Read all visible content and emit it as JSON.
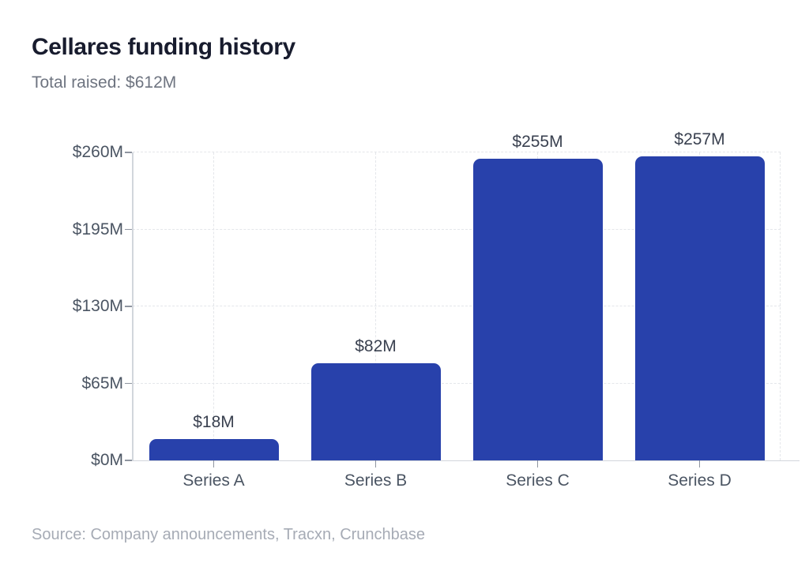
{
  "header": {
    "title": "Cellares funding history",
    "subtitle": "Total raised: $612M"
  },
  "chart_data": {
    "type": "bar",
    "title": "Cellares funding history",
    "subtitle": "Total raised: $612M",
    "categories": [
      "Series A",
      "Series B",
      "Series C",
      "Series D"
    ],
    "values": [
      18,
      82,
      255,
      257
    ],
    "value_labels": [
      "$18M",
      "$82M",
      "$255M",
      "$257M"
    ],
    "y_ticks": [
      {
        "value": 0,
        "label": "$0M"
      },
      {
        "value": 65,
        "label": "$65M"
      },
      {
        "value": 130,
        "label": "$130M"
      },
      {
        "value": 195,
        "label": "$195M"
      },
      {
        "value": 260,
        "label": "$260M"
      }
    ],
    "ylim": [
      0,
      260
    ],
    "xlabel": "",
    "ylabel": "",
    "grid": true,
    "legend": "none",
    "bar_color": "#2841ab"
  },
  "footer": {
    "source": "Source: Company announcements, Tracxn, Crunchbase"
  },
  "colors": {
    "background": "#ffffff",
    "title": "#181c2e",
    "subtitle": "#6e7480",
    "axis_label": "#4b5563",
    "value_label": "#3a4150",
    "bar": "#2841ab",
    "gridline": "#e4e6ea",
    "axis_line": "#d2d6dc",
    "source": "#a6abb5"
  }
}
